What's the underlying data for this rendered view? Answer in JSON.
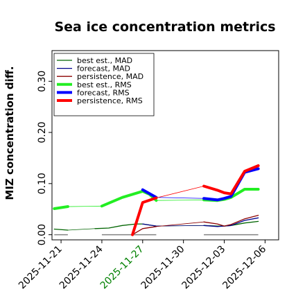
{
  "chart_data": {
    "type": "line",
    "title": "Sea ice concentration metrics",
    "ylabel": "MIZ concentration diff.",
    "xlabel": "",
    "ylim": [
      -0.01,
      0.36
    ],
    "yticks": [
      0.0,
      0.1,
      0.2,
      0.3
    ],
    "ytick_labels": [
      "0.00",
      "0.10",
      "0.20",
      "0.30"
    ],
    "xlim": [
      "2025-11-20T08:00",
      "2025-12-07T00:00"
    ],
    "xticks": [
      "2025-11-21",
      "2025-11-24",
      "2025-11-27",
      "2025-11-30",
      "2025-12-03",
      "2025-12-06"
    ],
    "xtick_labels": [
      {
        "text": "2025-11-21",
        "color": "#000000"
      },
      {
        "text": "2025-11-24",
        "color": "#000000"
      },
      {
        "text": "2025-11-27",
        "color": "#008000"
      },
      {
        "text": "2025-11-30",
        "color": "#000000"
      },
      {
        "text": "2025-12-03",
        "color": "#000000"
      },
      {
        "text": "2025-12-06",
        "color": "#000000"
      }
    ],
    "grid": false,
    "legend_position": "top-left",
    "series": [
      {
        "name": "best est., MAD",
        "color": "#006400",
        "width": 1.3,
        "x": [
          "2025-11-20T12:00",
          "2025-11-21T12:00",
          "2025-11-23T12:00",
          "2025-11-24T12:00",
          "2025-11-25T12:00",
          "2025-11-26T12:00",
          "2025-11-27T00:00",
          "2025-11-27T12:00",
          "2025-11-28T00:00",
          "2025-12-01T12:00",
          "2025-12-02T12:00",
          "2025-12-03T00:00",
          "2025-12-03T12:00",
          "2025-12-04T12:00",
          "2025-12-05T12:00"
        ],
        "y": [
          0.011,
          0.009,
          0.012,
          0.013,
          0.018,
          0.021,
          0.021,
          0.019,
          0.017,
          0.018,
          0.017,
          0.017,
          0.018,
          0.023,
          0.026
        ]
      },
      {
        "name": "forecast,  MAD",
        "color": "#00008b",
        "width": 1.3,
        "x": [
          "2025-11-27T00:00",
          "2025-11-28T00:00",
          "2025-12-01T12:00",
          "2025-12-02T12:00",
          "2025-12-03T00:00",
          "2025-12-03T12:00",
          "2025-12-04T12:00",
          "2025-12-05T12:00"
        ],
        "y": [
          0.021,
          0.017,
          0.018,
          0.016,
          0.017,
          0.018,
          0.028,
          0.033
        ]
      },
      {
        "name": "persistence, MAD",
        "color": "#8b0000",
        "width": 1.3,
        "x": [
          "2025-11-26T06:00",
          "2025-11-27T00:00",
          "2025-11-28T00:00",
          "2025-12-01T12:00",
          "2025-12-02T12:00",
          "2025-12-03T00:00",
          "2025-12-03T12:00",
          "2025-12-04T12:00",
          "2025-12-05T12:00"
        ],
        "y": [
          0.0,
          0.012,
          0.016,
          0.025,
          0.021,
          0.017,
          0.02,
          0.031,
          0.038
        ]
      },
      {
        "name": "best est., RMS",
        "color": "#22ee22",
        "width": 4,
        "x": [
          "2025-11-20T12:00",
          "2025-11-21T12:00",
          "2025-11-24T00:00",
          "2025-11-25T12:00",
          "2025-11-27T00:00",
          "2025-11-27T12:00",
          "2025-11-28T00:00",
          "2025-12-01T12:00",
          "2025-12-02T12:00",
          "2025-12-03T00:00",
          "2025-12-03T12:00",
          "2025-12-04T12:00",
          "2025-12-05T12:00"
        ],
        "y": [
          0.051,
          0.055,
          0.056,
          0.073,
          0.085,
          0.079,
          0.067,
          0.068,
          0.067,
          0.069,
          0.073,
          0.089,
          0.089
        ]
      },
      {
        "name": "forecast,  RMS",
        "color": "#0000ff",
        "width": 4,
        "x": [
          "2025-11-27T00:00",
          "2025-11-28T00:00",
          "2025-12-01T12:00",
          "2025-12-02T12:00",
          "2025-12-03T00:00",
          "2025-12-03T12:00",
          "2025-12-04T12:00",
          "2025-12-05T12:00"
        ],
        "y": [
          0.088,
          0.073,
          0.071,
          0.068,
          0.071,
          0.075,
          0.122,
          0.129
        ]
      },
      {
        "name": "persistence, RMS",
        "color": "#ff0000",
        "width": 4,
        "x": [
          "2025-11-26T06:00",
          "2025-11-27T00:00",
          "2025-11-28T00:00",
          "2025-12-01T12:00",
          "2025-12-02T12:00",
          "2025-12-03T00:00",
          "2025-12-03T12:00",
          "2025-12-04T12:00",
          "2025-12-05T12:00"
        ],
        "y": [
          0.0,
          0.063,
          0.072,
          0.095,
          0.087,
          0.082,
          0.08,
          0.124,
          0.135
        ]
      }
    ],
    "connectors": [
      {
        "color": "#006400",
        "width": 0.8,
        "x": [
          "2025-11-21T12:00",
          "2025-11-23T12:00"
        ],
        "y": [
          0.009,
          0.012
        ]
      },
      {
        "color": "#006400",
        "width": 0.8,
        "x": [
          "2025-11-28T00:00",
          "2025-12-01T12:00"
        ],
        "y": [
          0.017,
          0.018
        ]
      },
      {
        "color": "#00008b",
        "width": 0.8,
        "x": [
          "2025-11-28T00:00",
          "2025-12-01T12:00"
        ],
        "y": [
          0.017,
          0.018
        ]
      },
      {
        "color": "#8b0000",
        "width": 0.8,
        "x": [
          "2025-11-28T00:00",
          "2025-12-01T12:00"
        ],
        "y": [
          0.016,
          0.025
        ]
      },
      {
        "color": "#22ee22",
        "width": 0.8,
        "x": [
          "2025-11-21T12:00",
          "2025-11-24T00:00"
        ],
        "y": [
          0.055,
          0.056
        ]
      },
      {
        "color": "#22ee22",
        "width": 0.8,
        "x": [
          "2025-11-28T00:00",
          "2025-12-01T12:00"
        ],
        "y": [
          0.067,
          0.068
        ]
      },
      {
        "color": "#0000ff",
        "width": 0.8,
        "x": [
          "2025-11-28T00:00",
          "2025-12-01T12:00"
        ],
        "y": [
          0.073,
          0.071
        ]
      },
      {
        "color": "#ff0000",
        "width": 0.8,
        "x": [
          "2025-11-28T00:00",
          "2025-12-01T12:00"
        ],
        "y": [
          0.072,
          0.095
        ]
      }
    ],
    "baseline_bars": [
      {
        "color": "#808080",
        "x": [
          "2025-11-20T12:00",
          "2025-11-21T12:00"
        ],
        "y": 0.0
      },
      {
        "color": "#808080",
        "x": [
          "2025-11-24T00:00",
          "2025-11-28T00:00"
        ],
        "y": 0.0
      },
      {
        "color": "#808080",
        "x": [
          "2025-12-01T12:00",
          "2025-12-05T12:00"
        ],
        "y": 0.0
      }
    ]
  }
}
